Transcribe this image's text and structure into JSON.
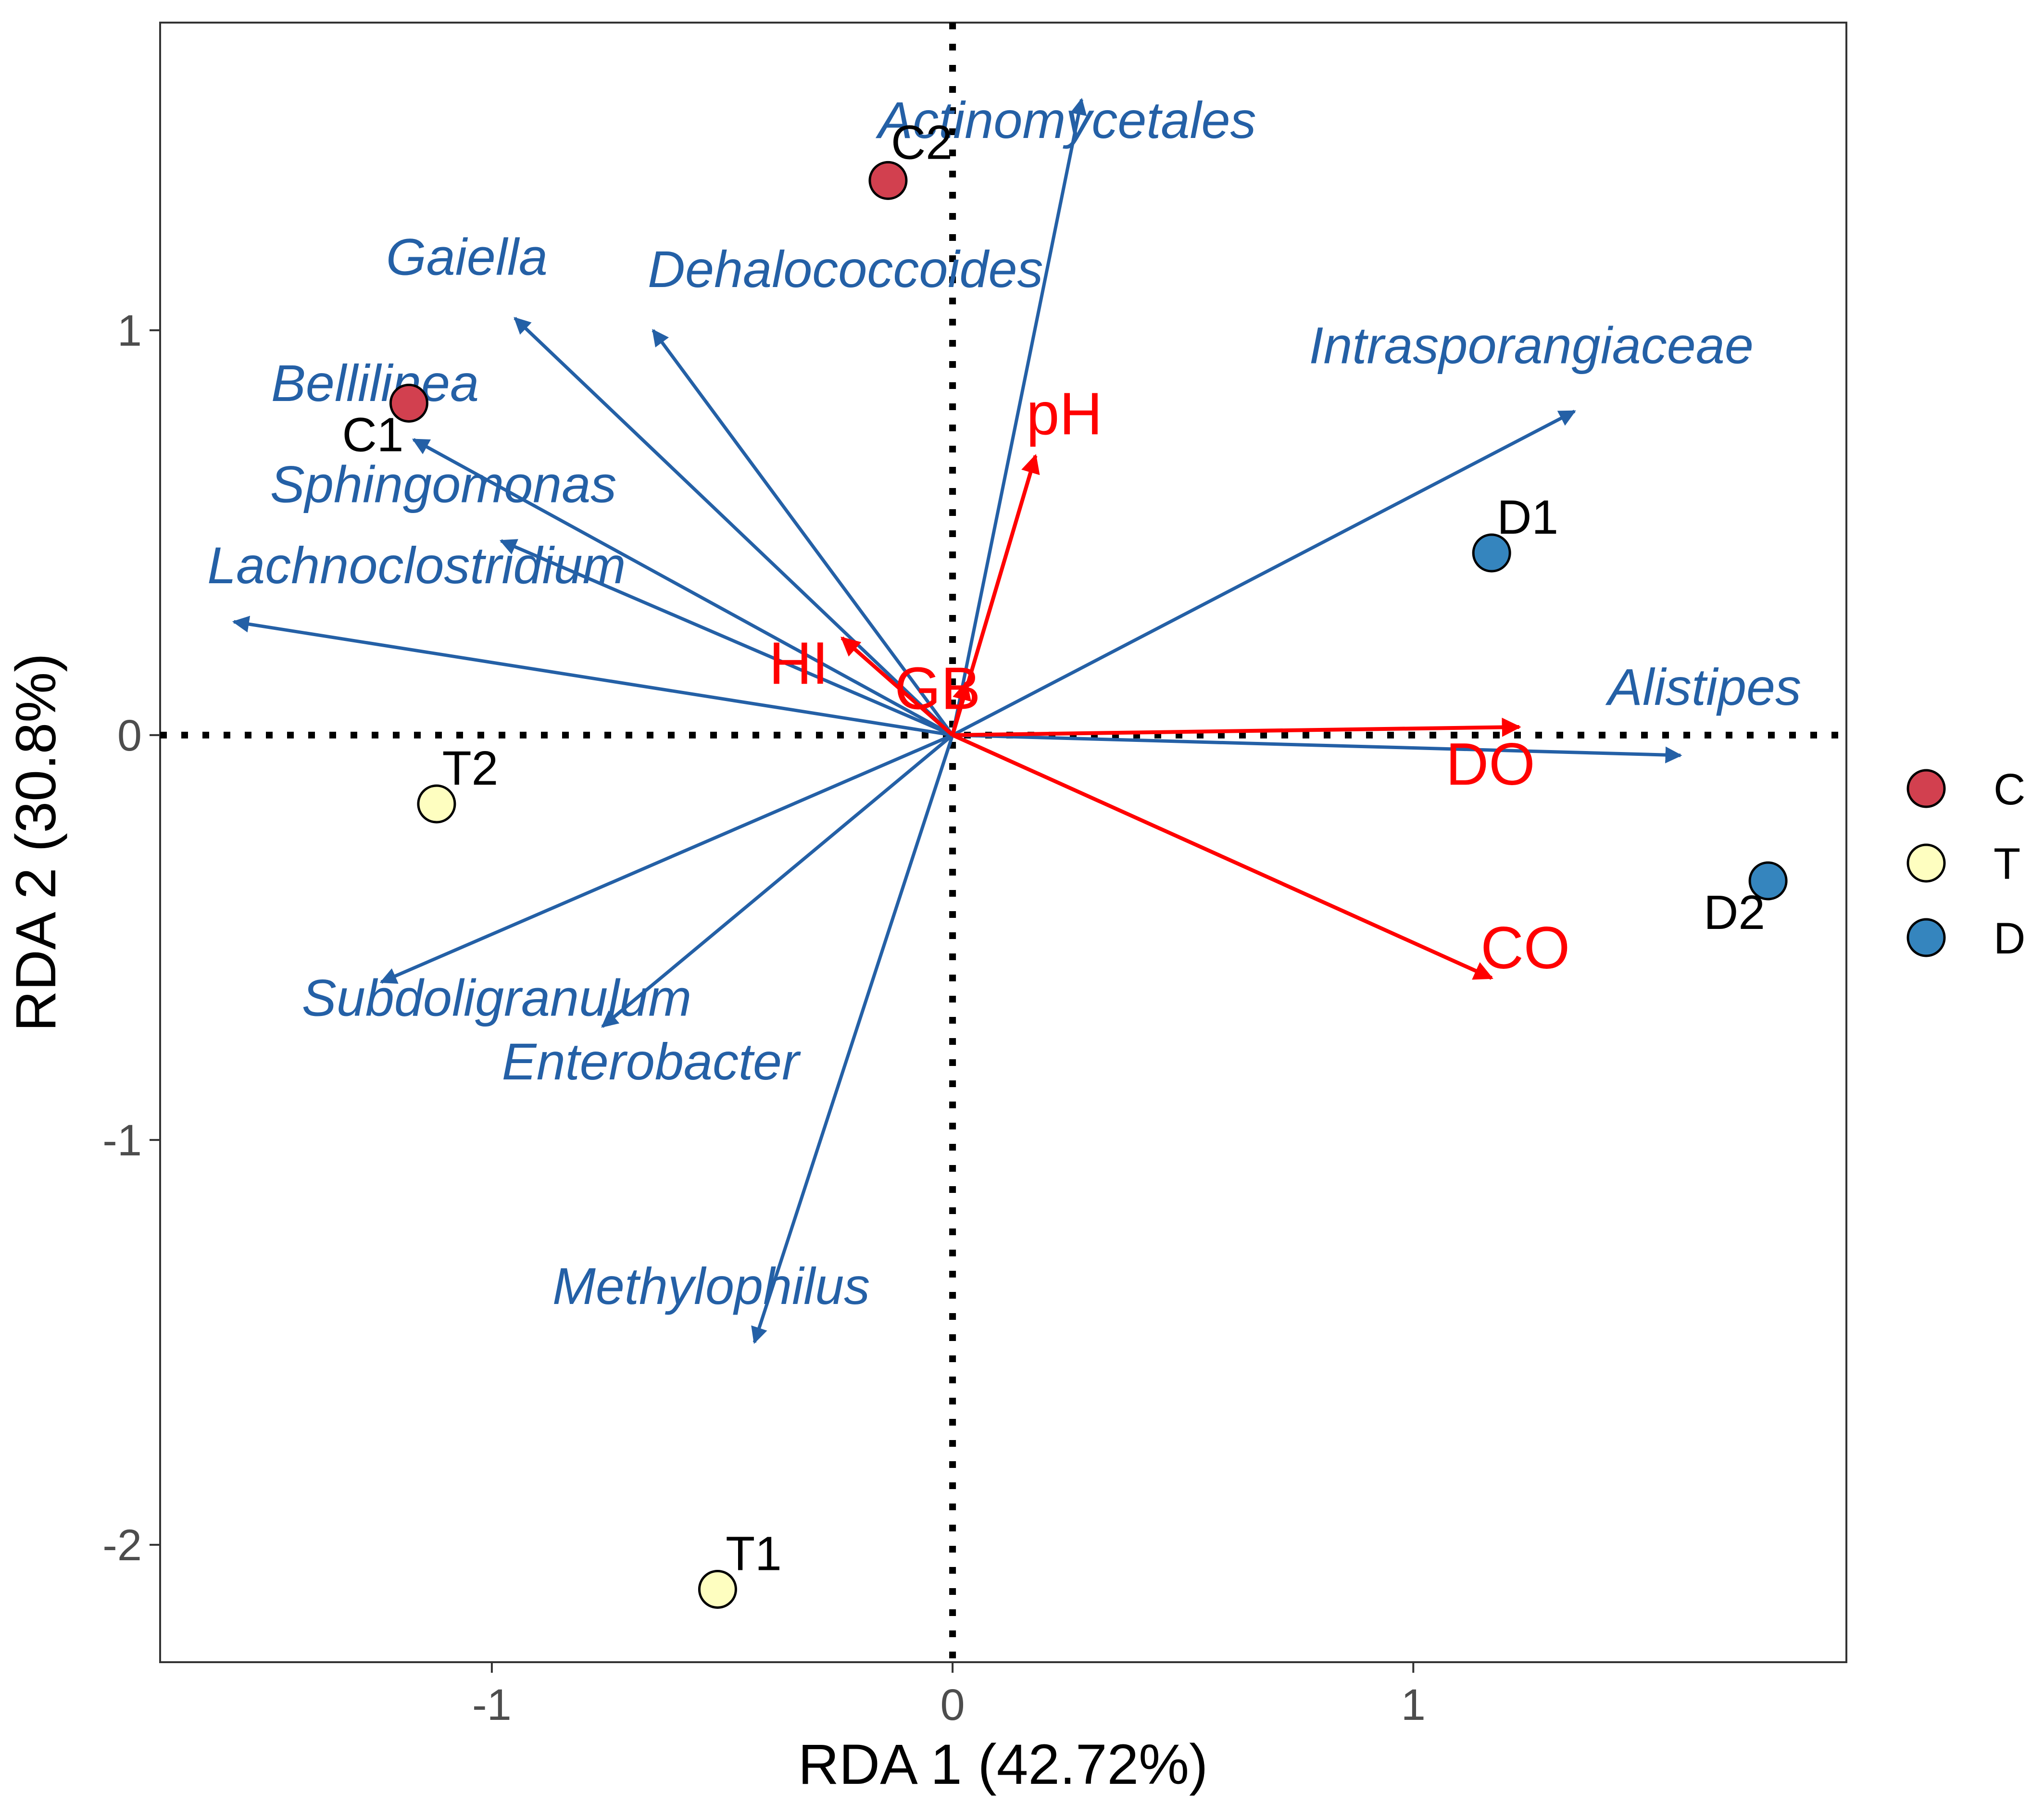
{
  "chart_data": {
    "type": "scatter",
    "subtype": "rda-biplot",
    "xlabel": "RDA 1 (42.72%)",
    "ylabel": "RDA 2 (30.8%)",
    "xlim": [
      -1.72,
      1.94
    ],
    "ylim": [
      -2.29,
      1.76
    ],
    "x_ticks": [
      -1,
      0,
      1
    ],
    "y_ticks": [
      -2,
      -1,
      0,
      1
    ],
    "grid": false,
    "reference_lines": [
      {
        "axis": "x",
        "value": 0,
        "style": "dotted"
      },
      {
        "axis": "y",
        "value": 0,
        "style": "dotted"
      }
    ],
    "colors": {
      "C": "#D2404F",
      "T": "#FEFEC0",
      "D": "#3585BE",
      "species": "#2460A6",
      "env": "#FF0000"
    },
    "legend": {
      "position": "right",
      "entries": [
        "C",
        "T",
        "D"
      ]
    },
    "samples": [
      {
        "label": "C1",
        "group": "C",
        "x": -1.18,
        "y": 0.82
      },
      {
        "label": "C2",
        "group": "C",
        "x": -0.14,
        "y": 1.37
      },
      {
        "label": "T1",
        "group": "T",
        "x": -0.51,
        "y": -2.11
      },
      {
        "label": "T2",
        "group": "T",
        "x": -1.12,
        "y": -0.17
      },
      {
        "label": "D1",
        "group": "D",
        "x": 1.17,
        "y": 0.45
      },
      {
        "label": "D2",
        "group": "D",
        "x": 1.77,
        "y": -0.36
      }
    ],
    "species": [
      {
        "name": "Actinomycetales",
        "x": 0.28,
        "y": 1.57
      },
      {
        "name": "Gaiella",
        "x": -0.95,
        "y": 1.03
      },
      {
        "name": "Dehalococcoides",
        "x": -0.65,
        "y": 1.0
      },
      {
        "name": "Bellilinea",
        "x": -1.17,
        "y": 0.73
      },
      {
        "name": "Sphingomonas",
        "x": -0.98,
        "y": 0.48
      },
      {
        "name": "Lachnoclostridium",
        "x": -1.56,
        "y": 0.28
      },
      {
        "name": "Intrasporangiaceae",
        "x": 1.35,
        "y": 0.8
      },
      {
        "name": "Alistipes",
        "x": 1.58,
        "y": -0.05
      },
      {
        "name": "Subdoligranulum",
        "x": -1.24,
        "y": -0.61
      },
      {
        "name": "Enterobacter",
        "x": -0.76,
        "y": -0.72
      },
      {
        "name": "Methylophilus",
        "x": -0.43,
        "y": -1.5
      }
    ],
    "env": [
      {
        "name": "pH",
        "x": 0.18,
        "y": 0.69
      },
      {
        "name": "HI",
        "x": -0.24,
        "y": 0.24
      },
      {
        "name": "GB",
        "x": 0.03,
        "y": 0.13
      },
      {
        "name": "DO",
        "x": 1.23,
        "y": 0.02
      },
      {
        "name": "CO",
        "x": 1.17,
        "y": -0.6
      }
    ]
  }
}
